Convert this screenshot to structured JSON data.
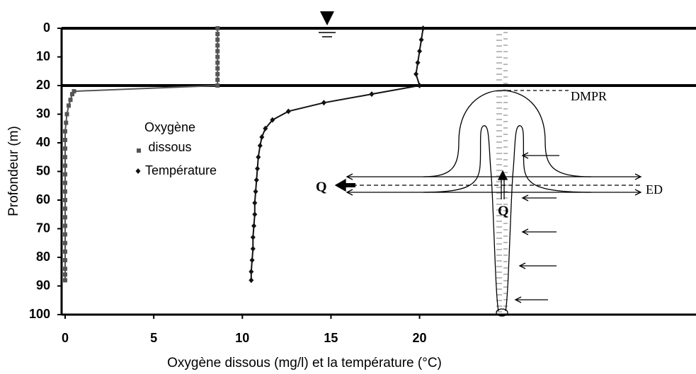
{
  "chart_data": {
    "type": "line",
    "xlabel": "Oxygène dissous (mg/l) et la température (°C)",
    "ylabel": "Profondeur (m)",
    "xlim": [
      -0.2,
      35.6
    ],
    "xticks": [
      0,
      5,
      10,
      15,
      20
    ],
    "ylim": [
      0,
      100
    ],
    "yticks": [
      0,
      10,
      20,
      30,
      40,
      50,
      60,
      70,
      80,
      90,
      100
    ],
    "y_inverted": true,
    "series": [
      {
        "name": "Oxygène dissous",
        "color": "#555555",
        "marker": "square",
        "x": [
          8.6,
          8.6,
          8.6,
          8.6,
          8.6,
          8.6,
          8.6,
          8.6,
          8.6,
          8.6,
          8.6,
          0.5,
          0.4,
          0.3,
          0.2,
          0.1,
          0.05,
          0,
          0,
          0,
          0,
          0,
          0,
          0,
          0,
          0,
          0,
          0,
          0,
          0,
          0,
          0,
          0,
          0,
          0,
          0
        ],
        "values": [
          0,
          2,
          4,
          6,
          8,
          10,
          12,
          14,
          16,
          18,
          20,
          22,
          23,
          25,
          27,
          30,
          33,
          36,
          39,
          42,
          45,
          48,
          51,
          54,
          57,
          60,
          63,
          66,
          69,
          72,
          75,
          78,
          81,
          84,
          86,
          88
        ]
      },
      {
        "name": "Température",
        "color": "#111111",
        "marker": "diamond",
        "x": [
          20.2,
          20.1,
          20.0,
          19.9,
          19.8,
          20.0,
          17.3,
          14.6,
          12.6,
          11.7,
          11.3,
          11.1,
          11.0,
          10.9,
          10.85,
          10.8,
          10.75,
          10.7,
          10.7,
          10.65,
          10.6,
          10.6,
          10.55,
          10.5,
          10.5
        ],
        "values": [
          0,
          4,
          8,
          12,
          16,
          20,
          23,
          26,
          29,
          32,
          35,
          38,
          41,
          45,
          49,
          53,
          57,
          61,
          65,
          69,
          73,
          77,
          81,
          85,
          88
        ]
      }
    ],
    "annotations": [
      "DMPR",
      "Q",
      "Q",
      "ED"
    ]
  }
}
